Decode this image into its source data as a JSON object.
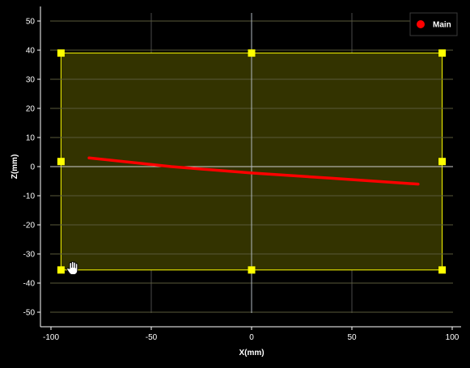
{
  "chart_data": {
    "type": "line",
    "xlabel": "X(mm)",
    "ylabel": "Z(mm)",
    "xlim": [
      -100,
      105
    ],
    "ylim": [
      -55,
      55
    ],
    "x_ticks": [
      -100,
      -50,
      0,
      50,
      100
    ],
    "y_ticks": [
      50,
      40,
      30,
      20,
      10,
      0,
      -10,
      -20,
      -30,
      -40,
      -50
    ],
    "grid": true,
    "legend_position": "top-right",
    "series": [
      {
        "name": "Main",
        "color": "#ff0000",
        "x": [
          -81,
          -40,
          0,
          40,
          83
        ],
        "y": [
          3,
          0,
          -2.2,
          -4,
          -6
        ]
      }
    ],
    "selection_region": {
      "x_range": [
        -95,
        95
      ],
      "y_range": [
        -35.5,
        39
      ],
      "fill_color": "#333300",
      "border_color": "#ffff00",
      "handle_color": "#ffff00"
    }
  },
  "icons": {
    "cursor": "hand-cursor-icon"
  }
}
